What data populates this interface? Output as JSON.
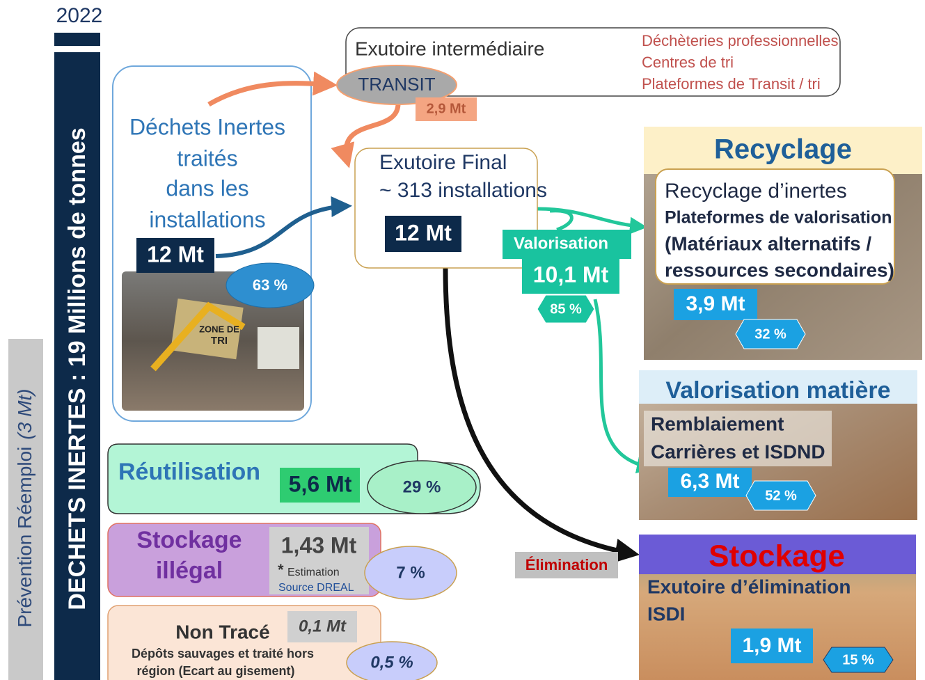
{
  "year": "2022",
  "side_title": "DECHETS INERTES : 19 Millions de tonnes",
  "prevention": {
    "label": "Prévention Réemploi",
    "amount": "(3 Mt)"
  },
  "intermediate": {
    "title": "Exutoire intermédiaire",
    "transit": "TRANSIT",
    "amount": "2,9 Mt",
    "sites": [
      "Déchèteries professionnelles",
      "Centres de tri",
      "Plateformes de Transit / tri"
    ]
  },
  "treated": {
    "lines": [
      "Déchets Inertes",
      "traités",
      "dans les",
      "installations"
    ],
    "amount": "12 Mt",
    "share": "63 %",
    "photo_sign": [
      "ZONE DE",
      "TRI"
    ]
  },
  "final": {
    "title": "Exutoire Final",
    "count": "~ 313 installations",
    "amount": "12 Mt"
  },
  "valorisation": {
    "label": "Valorisation",
    "amount": "10,1 Mt",
    "share": "85 %"
  },
  "recycling": {
    "title": "Recyclage",
    "lines": [
      "Recyclage d’inertes",
      "Plateformes de valorisation",
      "(Matériaux alternatifs /",
      "ressources secondaires)"
    ],
    "amount": "3,9 Mt",
    "share": "32 %"
  },
  "material": {
    "title": "Valorisation matière",
    "lines": [
      "Remblaiement",
      "Carrières et ISDND"
    ],
    "amount": "6,3 Mt",
    "share": "52 %"
  },
  "elimination": "Élimination",
  "storage": {
    "title": "Stockage",
    "lines": [
      "Exutoire d’élimination",
      "ISDI"
    ],
    "amount": "1,9 Mt",
    "share": "15 %"
  },
  "reuse": {
    "title": "Réutilisation",
    "amount": "5,6 Mt",
    "share": "29 %"
  },
  "illegal": {
    "title_lines": [
      "Stockage",
      "illégal"
    ],
    "amount": "1,43 Mt",
    "note_mark": "*",
    "note": "Estimation",
    "source": "Source DREAL",
    "share": "7 %"
  },
  "untraced": {
    "title": "Non Tracé",
    "amount": "0,1 Mt",
    "lines": [
      "Dépôts sauvages et traité hors",
      "région (Ecart au gisement)"
    ],
    "share": "0,5 %"
  }
}
